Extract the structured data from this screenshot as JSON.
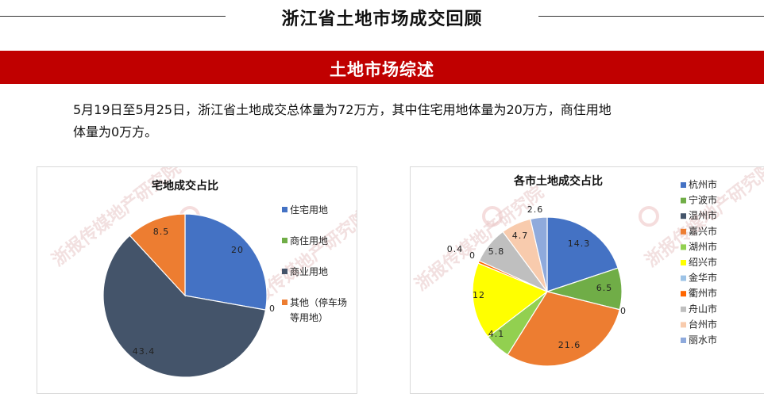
{
  "page": {
    "title": "浙江省土地市场成交回顾",
    "banner": "土地市场综述",
    "summary_line1": "5月19日至5月25日，浙江省土地成交总体量为72万方，其中住宅用地体量为20万方，商住用地",
    "summary_line2": "体量为0万方。",
    "watermark": "浙报传媒地产研究院"
  },
  "chart_data": [
    {
      "type": "pie",
      "title": "宅地成交占比",
      "series": [
        {
          "name": "住宅用地",
          "value": 20,
          "label": "20",
          "color": "#4472c4"
        },
        {
          "name": "商住用地",
          "value": 0,
          "label": "0",
          "color": "#70ad47"
        },
        {
          "name": "商业用地",
          "value": 43.4,
          "label": "43.4",
          "color": "#44546a"
        },
        {
          "name": "其他（停车场等用地）",
          "value": 8.5,
          "label": "8.5",
          "color": "#ed7d31"
        }
      ],
      "legend_position": "right",
      "legend": [
        "住宅用地",
        "商住用地",
        "商业用地",
        "其他（停车场",
        "等用地）"
      ]
    },
    {
      "type": "pie",
      "title": "各市土地成交占比",
      "series": [
        {
          "name": "杭州市",
          "value": 14.3,
          "label": "14.3",
          "color": "#4472c4"
        },
        {
          "name": "宁波市",
          "value": 6.5,
          "label": "6.5",
          "color": "#70ad47"
        },
        {
          "name": "温州市",
          "value": 0,
          "label": "0",
          "color": "#44546a"
        },
        {
          "name": "嘉兴市",
          "value": 21.6,
          "label": "21.6",
          "color": "#ed7d31"
        },
        {
          "name": "湖州市",
          "value": 4.1,
          "label": "4.1",
          "color": "#92d050"
        },
        {
          "name": "绍兴市",
          "value": 12,
          "label": "12",
          "color": "#ffff00"
        },
        {
          "name": "金华市",
          "value": 0,
          "label": "0",
          "color": "#9dc3e6"
        },
        {
          "name": "衢州市",
          "value": 0.4,
          "label": "0.4",
          "color": "#ff6600"
        },
        {
          "name": "舟山市",
          "value": 5.8,
          "label": "5.8",
          "color": "#bfbfbf"
        },
        {
          "name": "台州市",
          "value": 4.7,
          "label": "4.7",
          "color": "#f8cbad"
        },
        {
          "name": "丽水市",
          "value": 2.6,
          "label": "2.6",
          "color": "#8faadc"
        }
      ],
      "legend_position": "right"
    }
  ]
}
